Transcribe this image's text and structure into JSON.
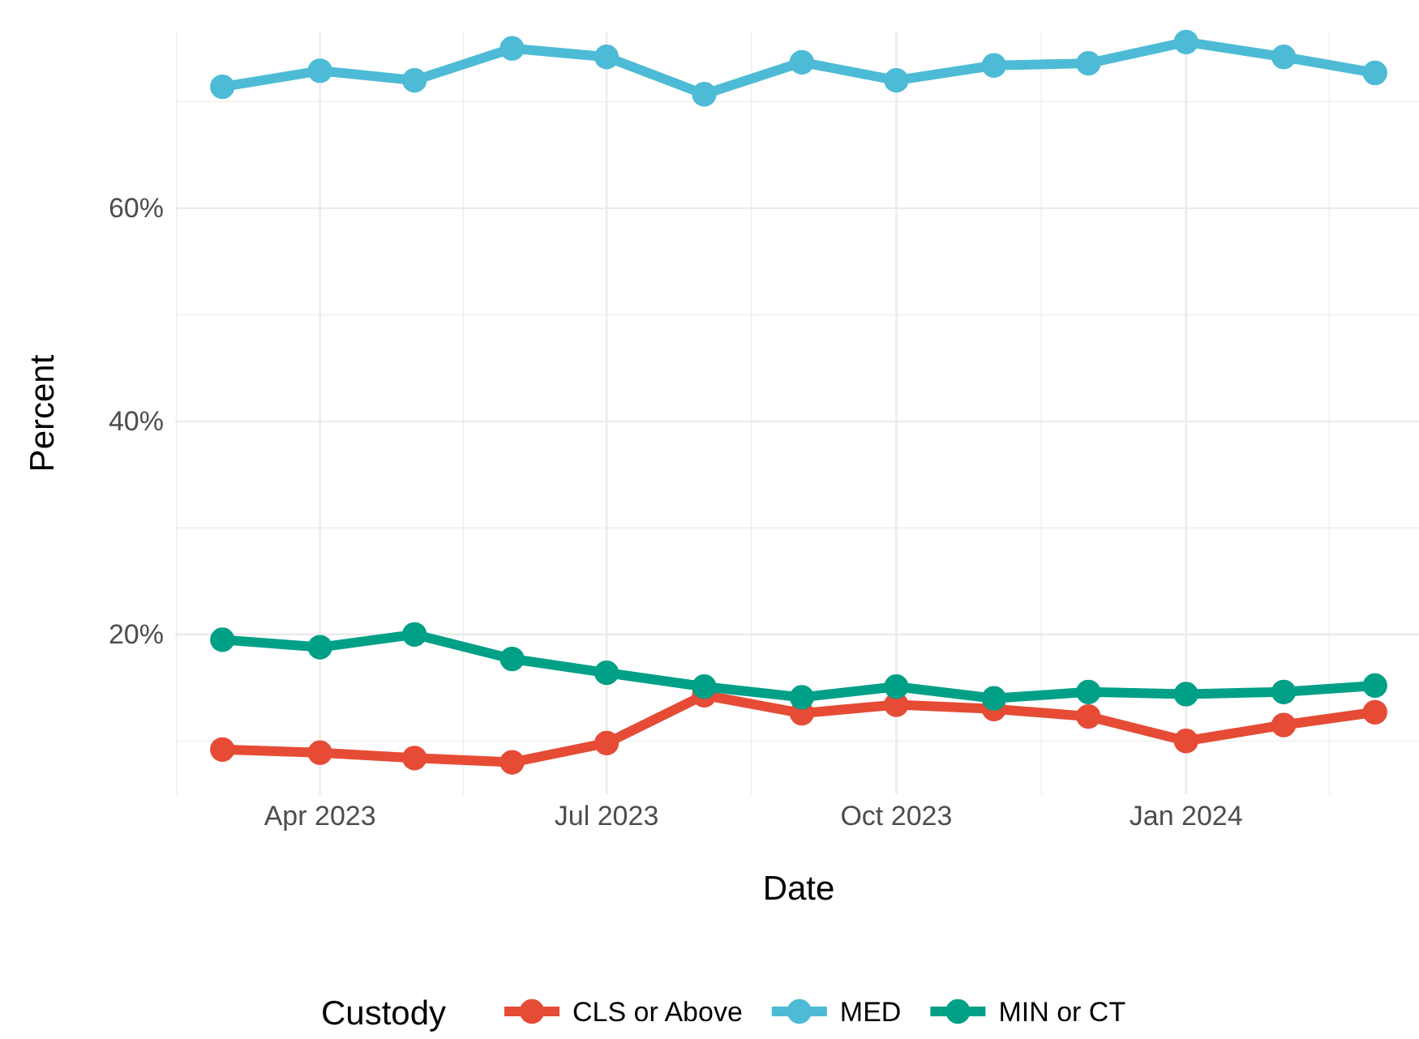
{
  "chart_data": {
    "type": "line",
    "xlabel": "Date",
    "ylabel": "Percent",
    "legend_title": "Custody",
    "legend": "bottom",
    "grid": true,
    "marker": "circle",
    "line_style": "solid",
    "x": [
      "2023-03-01",
      "2023-04-01",
      "2023-05-01",
      "2023-06-01",
      "2023-07-01",
      "2023-08-01",
      "2023-09-01",
      "2023-10-01",
      "2023-11-01",
      "2023-12-01",
      "2024-01-01",
      "2024-02-01",
      "2024-03-01"
    ],
    "xlim": [
      "2023-02-14",
      "2024-03-16"
    ],
    "xticks": [
      {
        "value": "2023-04-01",
        "label": "Apr 2023"
      },
      {
        "value": "2023-07-01",
        "label": "Jul 2023"
      },
      {
        "value": "2023-10-01",
        "label": "Oct 2023"
      },
      {
        "value": "2024-01-01",
        "label": "Jan 2024"
      }
    ],
    "ylim": [
      5,
      76.5
    ],
    "yticks": [
      {
        "value": 20,
        "label": "20%"
      },
      {
        "value": 40,
        "label": "40%"
      },
      {
        "value": 60,
        "label": "60%"
      }
    ],
    "series": [
      {
        "name": "CLS or Above",
        "color": "#e64b35",
        "values": [
          9.2,
          8.9,
          8.4,
          8.0,
          9.8,
          14.3,
          12.6,
          13.4,
          13.0,
          12.3,
          10.0,
          11.5,
          12.7
        ]
      },
      {
        "name": "MED",
        "color": "#4dbbd5",
        "values": [
          71.4,
          72.9,
          72.0,
          75.0,
          74.2,
          70.7,
          73.7,
          72.0,
          73.4,
          73.6,
          75.6,
          74.2,
          72.7
        ]
      },
      {
        "name": "MIN or CT",
        "color": "#00a087",
        "values": [
          19.5,
          18.8,
          20.0,
          17.7,
          16.4,
          15.1,
          14.1,
          15.1,
          14.0,
          14.6,
          14.4,
          14.6,
          15.2
        ]
      }
    ]
  }
}
